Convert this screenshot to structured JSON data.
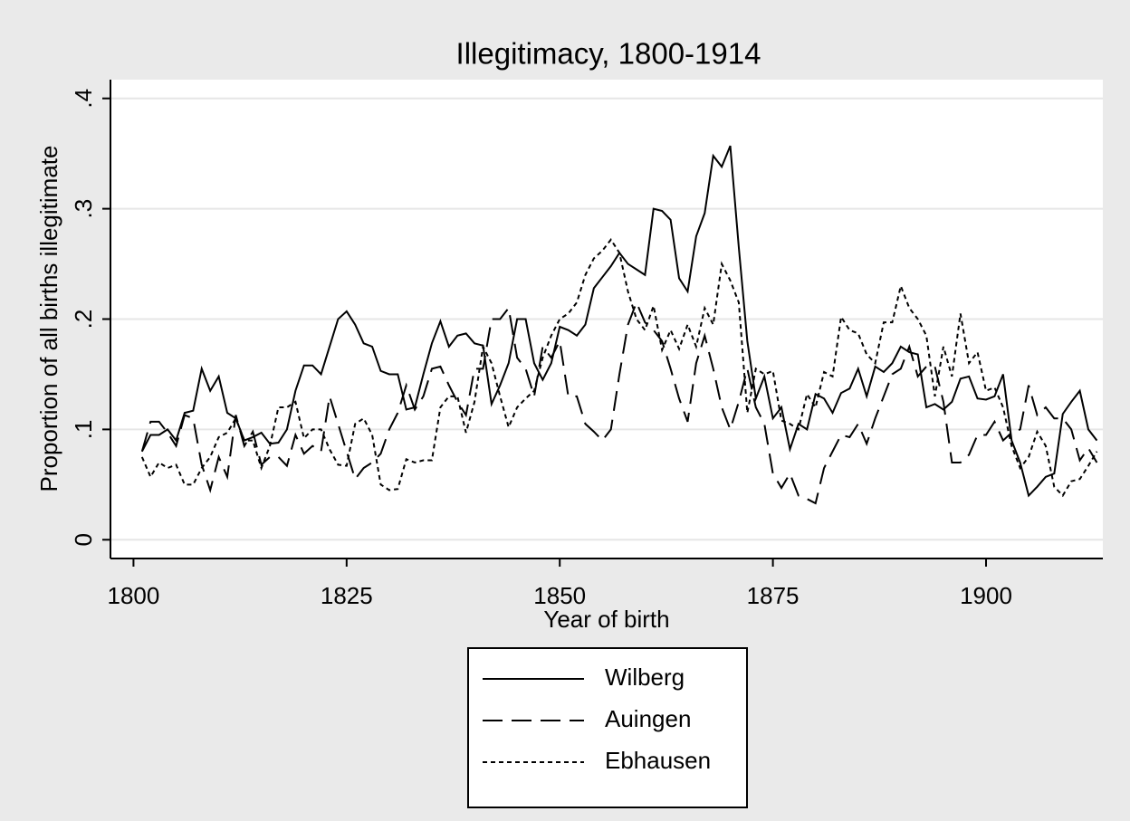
{
  "chart_data": {
    "type": "line",
    "title": "Illegitimacy, 1800-1914",
    "x_label": "Year of birth",
    "y_label": "Proportion of all births illegitimate",
    "x": [
      1801,
      1802,
      1803,
      1804,
      1805,
      1806,
      1807,
      1808,
      1809,
      1810,
      1811,
      1812,
      1813,
      1814,
      1815,
      1816,
      1817,
      1818,
      1819,
      1820,
      1821,
      1822,
      1823,
      1824,
      1825,
      1826,
      1827,
      1828,
      1829,
      1830,
      1831,
      1832,
      1833,
      1834,
      1835,
      1836,
      1837,
      1838,
      1839,
      1840,
      1841,
      1842,
      1843,
      1844,
      1845,
      1846,
      1847,
      1848,
      1849,
      1850,
      1851,
      1852,
      1853,
      1854,
      1855,
      1856,
      1857,
      1858,
      1859,
      1860,
      1861,
      1862,
      1863,
      1864,
      1865,
      1866,
      1867,
      1868,
      1869,
      1870,
      1871,
      1872,
      1873,
      1874,
      1875,
      1876,
      1877,
      1878,
      1879,
      1880,
      1881,
      1882,
      1883,
      1884,
      1885,
      1886,
      1887,
      1888,
      1889,
      1890,
      1891,
      1892,
      1893,
      1894,
      1895,
      1896,
      1897,
      1898,
      1899,
      1900,
      1901,
      1902,
      1903,
      1904,
      1905,
      1906,
      1907,
      1908,
      1909,
      1910,
      1911,
      1912,
      1913
    ],
    "series": [
      {
        "name": "Wilberg",
        "color": "#000000",
        "line_style": "solid",
        "values": [
          0.08,
          0.095,
          0.095,
          0.1,
          0.09,
          0.115,
          0.117,
          0.155,
          0.135,
          0.148,
          0.115,
          0.11,
          0.09,
          0.093,
          0.097,
          0.087,
          0.088,
          0.1,
          0.135,
          0.158,
          0.158,
          0.15,
          0.175,
          0.2,
          0.207,
          0.195,
          0.178,
          0.175,
          0.153,
          0.15,
          0.15,
          0.118,
          0.12,
          0.15,
          0.178,
          0.198,
          0.175,
          0.185,
          0.187,
          0.178,
          0.176,
          0.123,
          0.14,
          0.16,
          0.2,
          0.2,
          0.16,
          0.145,
          0.16,
          0.193,
          0.19,
          0.185,
          0.195,
          0.228,
          0.238,
          0.248,
          0.26,
          0.25,
          0.245,
          0.24,
          0.3,
          0.298,
          0.29,
          0.237,
          0.225,
          0.275,
          0.296,
          0.348,
          0.338,
          0.357,
          0.265,
          0.18,
          0.128,
          0.148,
          0.11,
          0.12,
          0.082,
          0.105,
          0.1,
          0.132,
          0.128,
          0.115,
          0.133,
          0.137,
          0.155,
          0.13,
          0.157,
          0.152,
          0.16,
          0.175,
          0.17,
          0.168,
          0.12,
          0.123,
          0.118,
          0.125,
          0.146,
          0.148,
          0.128,
          0.127,
          0.13,
          0.15,
          0.09,
          0.07,
          0.04,
          0.048,
          0.057,
          0.06,
          0.114,
          0.125,
          0.135,
          0.1,
          0.09
        ]
      },
      {
        "name": "Auingen",
        "color": "#000000",
        "line_style": "long-dash",
        "values": [
          0.08,
          0.107,
          0.107,
          0.097,
          0.085,
          0.113,
          0.11,
          0.068,
          0.045,
          0.075,
          0.057,
          0.113,
          0.085,
          0.098,
          0.068,
          0.075,
          0.075,
          0.067,
          0.095,
          0.078,
          0.085,
          0.08,
          0.13,
          0.105,
          0.08,
          0.055,
          0.065,
          0.07,
          0.078,
          0.1,
          0.115,
          0.14,
          0.118,
          0.13,
          0.155,
          0.157,
          0.14,
          0.125,
          0.113,
          0.155,
          0.155,
          0.2,
          0.2,
          0.21,
          0.165,
          0.155,
          0.13,
          0.175,
          0.165,
          0.18,
          0.13,
          0.13,
          0.105,
          0.098,
          0.09,
          0.1,
          0.15,
          0.195,
          0.215,
          0.197,
          0.19,
          0.18,
          0.155,
          0.128,
          0.107,
          0.16,
          0.185,
          0.155,
          0.12,
          0.1,
          0.125,
          0.155,
          0.12,
          0.105,
          0.06,
          0.047,
          0.06,
          0.04,
          0.037,
          0.033,
          0.065,
          0.08,
          0.095,
          0.093,
          0.105,
          0.087,
          0.11,
          0.13,
          0.15,
          0.155,
          0.175,
          0.148,
          0.157,
          0.157,
          0.125,
          0.07,
          0.07,
          0.077,
          0.095,
          0.095,
          0.107,
          0.09,
          0.097,
          0.1,
          0.14,
          0.113,
          0.12,
          0.11,
          0.11,
          0.1,
          0.072,
          0.083,
          0.07
        ]
      },
      {
        "name": "Ebhausen",
        "color": "#000000",
        "line_style": "short-dash",
        "values": [
          0.075,
          0.057,
          0.07,
          0.065,
          0.068,
          0.05,
          0.05,
          0.065,
          0.075,
          0.093,
          0.097,
          0.11,
          0.09,
          0.09,
          0.065,
          0.085,
          0.12,
          0.12,
          0.125,
          0.092,
          0.1,
          0.1,
          0.082,
          0.068,
          0.067,
          0.105,
          0.11,
          0.095,
          0.05,
          0.045,
          0.046,
          0.073,
          0.07,
          0.072,
          0.072,
          0.12,
          0.13,
          0.13,
          0.097,
          0.125,
          0.175,
          0.16,
          0.13,
          0.102,
          0.12,
          0.128,
          0.135,
          0.165,
          0.185,
          0.2,
          0.205,
          0.215,
          0.24,
          0.255,
          0.262,
          0.272,
          0.26,
          0.225,
          0.2,
          0.19,
          0.212,
          0.172,
          0.19,
          0.173,
          0.195,
          0.175,
          0.21,
          0.195,
          0.25,
          0.235,
          0.215,
          0.115,
          0.155,
          0.15,
          0.153,
          0.108,
          0.105,
          0.1,
          0.132,
          0.12,
          0.152,
          0.148,
          0.202,
          0.19,
          0.187,
          0.168,
          0.16,
          0.197,
          0.197,
          0.23,
          0.21,
          0.2,
          0.185,
          0.13,
          0.175,
          0.148,
          0.205,
          0.16,
          0.17,
          0.135,
          0.138,
          0.12,
          0.085,
          0.065,
          0.075,
          0.098,
          0.085,
          0.048,
          0.04,
          0.053,
          0.055,
          0.067,
          0.08
        ]
      }
    ],
    "xlim": [
      1797.3,
      1913.7
    ],
    "xticks": [
      1800,
      1825,
      1850,
      1875,
      1900
    ],
    "ylim": [
      -0.017,
      0.417
    ],
    "yticks": [
      0,
      {
        "value": 0.1,
        "label": ".1"
      },
      {
        "value": 0.2,
        "label": ".2"
      },
      {
        "value": 0.3,
        "label": ".3"
      },
      {
        "value": 0.4,
        "label": ".4"
      }
    ],
    "grid": true,
    "legend": "bottom"
  }
}
